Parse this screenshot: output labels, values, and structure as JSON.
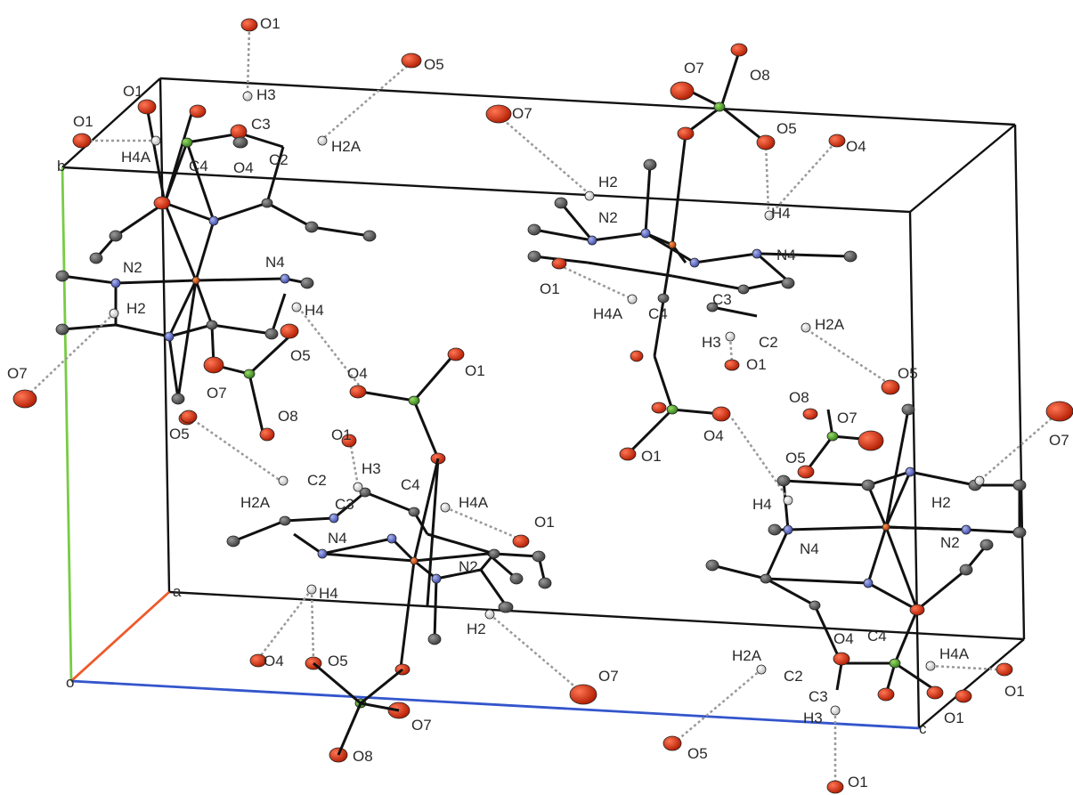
{
  "figure": {
    "axis_labels": {
      "a": "a",
      "b": "b",
      "c": "c",
      "origin": "o"
    },
    "colors": {
      "box": "#111111",
      "axis_a": "#ee5a2a",
      "axis_b": "#77cc44",
      "axis_c": "#3355cc",
      "oxygen": "#cc2200",
      "nitrogen": "#6a7ad8",
      "carbon": "#555555",
      "hydrogen": "#d8d8d8",
      "copper": "#cc5511",
      "chlorine": "#55aa33",
      "hbond": "#aaaaaa"
    },
    "atom_labels": {
      "g1": [
        "O1",
        "O5",
        "O1",
        "O1",
        "H3",
        "C3",
        "H4A",
        "C4",
        "O4",
        "C2",
        "H2A",
        "N2",
        "N4",
        "H2",
        "H4",
        "O5",
        "O7",
        "O7",
        "O8",
        "O4",
        "O1",
        "O5"
      ],
      "g2": [
        "O7",
        "O8",
        "O7",
        "O5",
        "O4",
        "H2",
        "N2",
        "H4",
        "N4",
        "O1",
        "H4A",
        "C4",
        "C3",
        "H3",
        "C2",
        "H2A",
        "O1",
        "O5",
        "O8",
        "O7",
        "O4",
        "O1"
      ],
      "g3": [
        "O1",
        "H3",
        "C2",
        "C3",
        "C4",
        "H4A",
        "O1",
        "H2A",
        "N4",
        "H4",
        "N2",
        "H2",
        "O4",
        "O5",
        "O7",
        "O7",
        "O8"
      ],
      "g4": [
        "O7",
        "O5",
        "H4",
        "H2",
        "N4",
        "N2",
        "H2A",
        "C2",
        "O4",
        "C4",
        "H4A",
        "C3",
        "H3",
        "O1",
        "O1",
        "O5",
        "O1"
      ]
    }
  }
}
